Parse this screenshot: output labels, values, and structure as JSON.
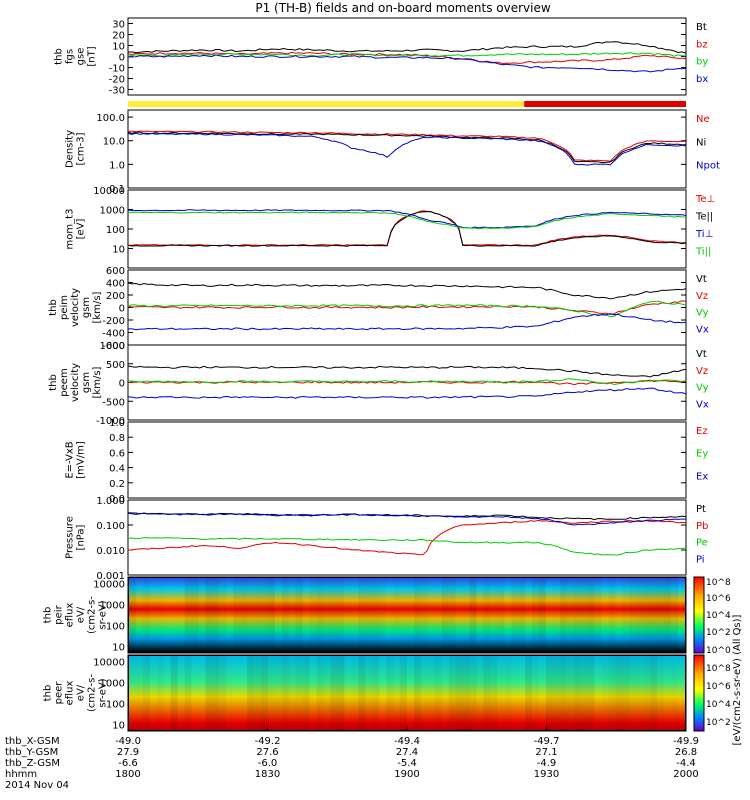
{
  "title": "P1 (TH-B) fields and on-board moments overview",
  "colors": {
    "black": "#000000",
    "red": "#e00000",
    "green": "#00cc00",
    "blue": "#0000cc",
    "yellow": "#ffee33",
    "gray": "#888888"
  },
  "chart_data": [
    {
      "type": "line",
      "name": "fgs",
      "ylabel": [
        "thb",
        "fgs",
        "gse",
        "[nT]"
      ],
      "ylim": [
        -35,
        35
      ],
      "ticks": [
        "30",
        "20",
        "10",
        "0",
        "-10",
        "-20",
        "-30"
      ],
      "tick_values": [
        30,
        20,
        10,
        0,
        -10,
        -20,
        -30
      ],
      "log": false,
      "series": [
        {
          "name": "Bt",
          "color": "#000000",
          "values": [
            4,
            5,
            6,
            5,
            7,
            6,
            5,
            5,
            6,
            5,
            8,
            9,
            9,
            14,
            10,
            3
          ]
        },
        {
          "name": "bz",
          "color": "#e00000",
          "values": [
            2,
            3,
            3,
            2,
            3,
            3,
            2,
            2,
            1,
            -2,
            -6,
            -5,
            -4,
            -3,
            1,
            -2
          ]
        },
        {
          "name": "by",
          "color": "#00cc00",
          "values": [
            1,
            1,
            2,
            2,
            2,
            1,
            2,
            1,
            1,
            1,
            2,
            2,
            2,
            3,
            3,
            0
          ]
        },
        {
          "name": "bx",
          "color": "#0000cc",
          "values": [
            0,
            0,
            1,
            0,
            0,
            0,
            0,
            -1,
            -1,
            -2,
            -7,
            -10,
            -10,
            -12,
            -14,
            -10
          ]
        }
      ]
    },
    {
      "type": "line",
      "name": "density",
      "ylabel": [
        "Density",
        "[cm-3]"
      ],
      "ylim": [
        0.1,
        200
      ],
      "ticks": [
        "100.0",
        "10.0",
        "1.0",
        "0.1"
      ],
      "tick_values": [
        100,
        10,
        1,
        0.1
      ],
      "log": true,
      "series": [
        {
          "name": "Ne",
          "color": "#e00000",
          "values": [
            25,
            24,
            24,
            23,
            22,
            22,
            20,
            19,
            18,
            16,
            15,
            13,
            1.5,
            1.4,
            10,
            9
          ]
        },
        {
          "name": "Ni",
          "color": "#000000",
          "values": [
            22,
            21,
            21,
            20,
            19,
            19,
            18,
            17,
            16,
            14,
            13,
            11,
            1.3,
            1.2,
            8,
            7
          ]
        },
        {
          "name": "Npot",
          "color": "#0000cc",
          "values": [
            20,
            19,
            19,
            18,
            17,
            15,
            5,
            2,
            14,
            13,
            12,
            10,
            1,
            1,
            7,
            6
          ]
        }
      ]
    },
    {
      "type": "line",
      "name": "mom_t3",
      "ylabel": [
        "mom_t3",
        "[eV]"
      ],
      "ylim": [
        1,
        10000
      ],
      "ticks": [
        "10000",
        "1000",
        "100",
        "10"
      ],
      "tick_values": [
        10000,
        1000,
        100,
        10
      ],
      "log": true,
      "series": [
        {
          "name": "Te⊥",
          "color": "#e00000",
          "values": [
            15,
            15,
            15,
            15,
            15,
            15,
            15,
            15,
            900,
            15,
            15,
            15,
            40,
            50,
            25,
            20
          ]
        },
        {
          "name": "Te||",
          "color": "#000000",
          "values": [
            14,
            14,
            14,
            14,
            14,
            14,
            14,
            14,
            850,
            14,
            14,
            14,
            35,
            45,
            22,
            18
          ]
        },
        {
          "name": "Ti⊥",
          "color": "#0000cc",
          "values": [
            900,
            900,
            920,
            900,
            920,
            900,
            900,
            880,
            300,
            120,
            120,
            150,
            500,
            700,
            600,
            500
          ]
        },
        {
          "name": "Ti||",
          "color": "#00cc00",
          "values": [
            700,
            700,
            700,
            700,
            700,
            700,
            700,
            680,
            250,
            110,
            110,
            130,
            400,
            600,
            500,
            400
          ]
        }
      ]
    },
    {
      "type": "line",
      "name": "peim_velocity",
      "ylabel": [
        "thb",
        "peim",
        "velocity",
        "gsm",
        "[km/s]"
      ],
      "ylim": [
        -600,
        600
      ],
      "ticks": [
        "600",
        "400",
        "200",
        "0",
        "-200",
        "-400",
        "-600"
      ],
      "tick_values": [
        600,
        400,
        200,
        0,
        -200,
        -400,
        -600
      ],
      "log": false,
      "series": [
        {
          "name": "Vt",
          "color": "#000000",
          "values": [
            380,
            360,
            350,
            360,
            355,
            350,
            350,
            355,
            350,
            345,
            330,
            320,
            200,
            150,
            250,
            300
          ]
        },
        {
          "name": "Vz",
          "color": "#e00000",
          "values": [
            10,
            0,
            5,
            0,
            10,
            0,
            5,
            0,
            10,
            10,
            20,
            10,
            -50,
            -100,
            50,
            100
          ]
        },
        {
          "name": "Vy",
          "color": "#00cc00",
          "values": [
            30,
            25,
            30,
            30,
            25,
            30,
            30,
            25,
            30,
            35,
            25,
            20,
            -50,
            -150,
            100,
            50
          ]
        },
        {
          "name": "Vx",
          "color": "#0000cc",
          "values": [
            -350,
            -340,
            -345,
            -340,
            -345,
            -340,
            -345,
            -340,
            -340,
            -335,
            -320,
            -300,
            -150,
            -100,
            -200,
            -250
          ]
        }
      ]
    },
    {
      "type": "line",
      "name": "peem_velocity",
      "ylabel": [
        "thb",
        "peem",
        "velocity",
        "gsm",
        "[km/s]"
      ],
      "ylim": [
        -1000,
        1000
      ],
      "ticks": [
        "1000",
        "500",
        "0",
        "-500",
        "-1000"
      ],
      "tick_values": [
        1000,
        500,
        0,
        -500,
        -1000
      ],
      "log": false,
      "series": [
        {
          "name": "Vt",
          "color": "#000000",
          "values": [
            420,
            400,
            410,
            400,
            410,
            400,
            400,
            410,
            400,
            410,
            400,
            380,
            300,
            200,
            150,
            350
          ]
        },
        {
          "name": "Vz",
          "color": "#e00000",
          "values": [
            0,
            10,
            0,
            10,
            0,
            10,
            0,
            0,
            10,
            0,
            10,
            20,
            -50,
            0,
            50,
            20
          ]
        },
        {
          "name": "Vy",
          "color": "#00cc00",
          "values": [
            20,
            30,
            20,
            30,
            20,
            30,
            20,
            30,
            20,
            30,
            20,
            30,
            100,
            -50,
            60,
            40
          ]
        },
        {
          "name": "Vx",
          "color": "#0000cc",
          "values": [
            -400,
            -390,
            -400,
            -390,
            -400,
            -390,
            -400,
            -390,
            -400,
            -390,
            -380,
            -370,
            -250,
            -200,
            -150,
            -300
          ]
        }
      ]
    },
    {
      "type": "line",
      "name": "E_field",
      "ylabel": [
        "E=-VxB",
        "[mV/m]"
      ],
      "ylim": [
        0,
        1
      ],
      "ticks": [
        "1.0",
        "0.8",
        "0.6",
        "0.4",
        "0.2",
        "0.0"
      ],
      "tick_values": [
        1,
        0.8,
        0.6,
        0.4,
        0.2,
        0
      ],
      "log": false,
      "series": [
        {
          "name": "Ez",
          "color": "#e00000",
          "values": []
        },
        {
          "name": "Ey",
          "color": "#00cc00",
          "values": []
        },
        {
          "name": "Ex",
          "color": "#0000cc",
          "values": []
        }
      ]
    },
    {
      "type": "line",
      "name": "pressure",
      "ylabel": [
        "Pressure",
        "[nPa]"
      ],
      "ylim": [
        0.001,
        1
      ],
      "ticks": [
        "1.000",
        "0.100",
        "0.010",
        "0.001"
      ],
      "tick_values": [
        1,
        0.1,
        0.01,
        0.001
      ],
      "log": true,
      "series": [
        {
          "name": "Pt",
          "color": "#000000",
          "values": [
            0.3,
            0.28,
            0.27,
            0.28,
            0.26,
            0.25,
            0.27,
            0.25,
            0.24,
            0.22,
            0.25,
            0.2,
            0.18,
            0.17,
            0.2,
            0.22
          ]
        },
        {
          "name": "Pb",
          "color": "#e00000",
          "values": [
            0.01,
            0.012,
            0.015,
            0.012,
            0.02,
            0.015,
            0.01,
            0.008,
            0.006,
            0.1,
            0.12,
            0.15,
            0.12,
            0.14,
            0.15,
            0.12
          ]
        },
        {
          "name": "Pe",
          "color": "#00cc00",
          "values": [
            0.03,
            0.03,
            0.028,
            0.028,
            0.028,
            0.027,
            0.026,
            0.025,
            0.025,
            0.02,
            0.02,
            0.02,
            0.008,
            0.006,
            0.01,
            0.012
          ]
        },
        {
          "name": "Pi",
          "color": "#0000cc",
          "values": [
            0.28,
            0.27,
            0.26,
            0.27,
            0.25,
            0.24,
            0.26,
            0.24,
            0.23,
            0.2,
            0.22,
            0.18,
            0.1,
            0.12,
            0.15,
            0.17
          ]
        }
      ]
    },
    {
      "type": "heatmap",
      "name": "peir_eflux",
      "ylabel": [
        "thb",
        "peir",
        "eflux",
        "eV/",
        "(cm2-s-",
        "sr-eV)"
      ],
      "ylim": [
        5,
        20000
      ],
      "ticks": [
        "10000",
        "1000",
        "100",
        "10"
      ],
      "tick_values": [
        10000,
        1000,
        100,
        10
      ]
    },
    {
      "type": "heatmap",
      "name": "peer_eflux",
      "ylabel": [
        "thb",
        "peer",
        "eflux",
        "eV/",
        "(cm2-s-",
        "sr-eV)"
      ],
      "ylim": [
        5,
        20000
      ],
      "ticks": [
        "10000",
        "1000",
        "100",
        "10"
      ],
      "tick_values": [
        10000,
        1000,
        100,
        10
      ]
    }
  ],
  "colorbar": {
    "labels": [
      "10^8",
      "10^6",
      "10^4",
      "10^2",
      "10^0",
      "10^8",
      "10^6",
      "10^4",
      "10^2"
    ],
    "title": "[eV/(cm2-s-sr-eV) (All Qs)]"
  },
  "x_axis": {
    "rows": [
      {
        "label": "thb_X-GSM",
        "values": [
          "-49.0",
          "-49.2",
          "-49.4",
          "-49.7",
          "-49.9"
        ]
      },
      {
        "label": "thb_Y-GSM",
        "values": [
          "27.9",
          "27.6",
          "27.4",
          "27.1",
          "26.8"
        ]
      },
      {
        "label": "thb_Z-GSM",
        "values": [
          "-6.6",
          "-6.0",
          "-5.4",
          "-4.9",
          "-4.4"
        ]
      },
      {
        "label": "hhmm",
        "values": [
          "1800",
          "1830",
          "1900",
          "1930",
          "2000"
        ]
      }
    ],
    "date": "2014 Nov 04"
  },
  "bottom_right_label": "[eV/(cm2-s-sr-eV) (All Qs)]"
}
